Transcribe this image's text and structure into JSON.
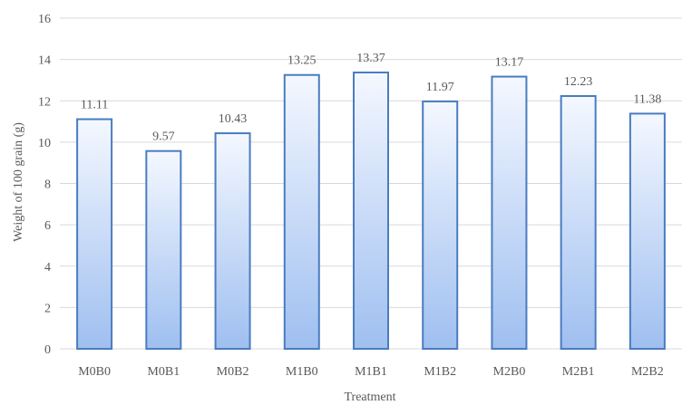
{
  "chart_data": {
    "type": "bar",
    "categories": [
      "M0B0",
      "M0B1",
      "M0B2",
      "M1B0",
      "M1B1",
      "M1B2",
      "M2B0",
      "M2B1",
      "M2B2"
    ],
    "values": [
      11.11,
      9.57,
      10.43,
      13.25,
      13.37,
      11.97,
      13.17,
      12.23,
      11.38
    ],
    "value_labels": [
      "11.11",
      "9.57",
      "10.43",
      "13.25",
      "13.37",
      "11.97",
      "13.17",
      "12.23",
      "11.38"
    ],
    "yticks": [
      "0",
      "2",
      "4",
      "6",
      "8",
      "10",
      "12",
      "14",
      "16"
    ],
    "xlabel": "Treatment",
    "ylabel": "Weight of 100 grain (g)",
    "ylim": [
      0,
      16
    ],
    "grid": true,
    "colors": {
      "bar_top": "#f4f8ff",
      "bar_bottom": "#9fbff0",
      "bar_border": "#4a7cc0",
      "grid": "#d9d9d9",
      "text": "#595959"
    }
  }
}
